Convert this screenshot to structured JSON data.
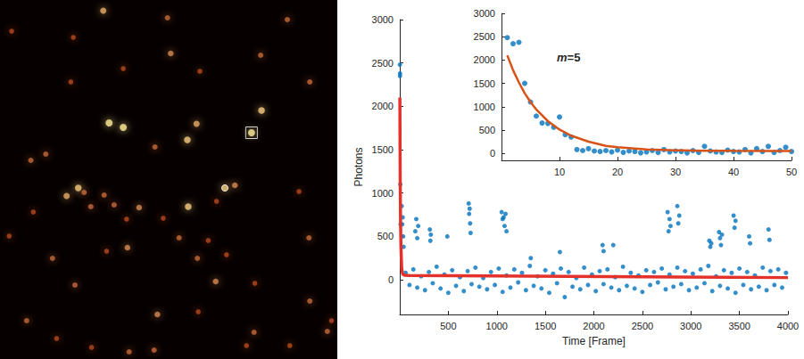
{
  "chart_data": [
    {
      "type": "image",
      "tick_labels": false,
      "xlim": [
        0,
        405
      ],
      "ylim": [
        0,
        403
      ],
      "x": [
        124,
        201,
        345,
        14,
        88,
        205,
        313,
        148,
        240,
        85,
        372,
        131,
        148,
        236,
        225,
        314,
        302,
        186,
        55,
        37,
        270,
        282,
        94,
        80,
        101,
        260,
        109,
        125,
        167,
        137,
        226,
        152,
        196,
        40,
        359,
        11,
        215,
        250,
        153,
        128,
        63,
        237,
        371,
        272,
        259,
        306,
        90,
        372,
        189,
        32,
        238,
        155,
        185,
        305,
        110,
        296,
        348,
        68,
        393,
        398
      ],
      "values": [
        12,
        20,
        22,
        35,
        42,
        60,
        62,
        77,
        80,
        92,
        92,
        138,
        143,
        139,
        157,
        124,
        149,
        165,
        173,
        180,
        211,
        208,
        211,
        220,
        216,
        226,
        232,
        219,
        233,
        230,
        232,
        246,
        245,
        238,
        215,
        265,
        267,
        270,
        278,
        282,
        290,
        290,
        267,
        286,
        316,
        318,
        320,
        338,
        353,
        360,
        350,
        395,
        393,
        373,
        390,
        388,
        388,
        380,
        372,
        360
      ],
      "intensities": [
        0.8,
        0.6,
        0.6,
        0.5,
        0.5,
        0.7,
        0.6,
        0.5,
        0.5,
        0.5,
        0.6,
        1,
        1,
        0.8,
        0.9,
        0.9,
        1,
        0.6,
        0.6,
        0.6,
        0.9,
        0.7,
        0.9,
        0.8,
        0.6,
        0.5,
        0.6,
        0.6,
        0.7,
        0.6,
        0.9,
        0.5,
        0.5,
        0.5,
        0.5,
        0.5,
        0.6,
        0.5,
        0.7,
        0.5,
        0.6,
        0.6,
        0.6,
        0.5,
        0.7,
        0.5,
        0.6,
        0.6,
        0.7,
        0.6,
        0.5,
        0.6,
        0.6,
        0.6,
        0.5,
        0.5,
        0.5,
        0.5,
        0.6,
        0.5
      ],
      "boxed": [
        302,
        149
      ],
      "ringed": [
        270,
        211
      ]
    },
    {
      "type": "scatter",
      "xlabel": "Time [Frame]",
      "ylabel": "Photons",
      "xlim": [
        0,
        4000
      ],
      "xticks": [
        500,
        1000,
        1500,
        2000,
        2500,
        3000,
        3500,
        4000
      ],
      "ylim": [
        -400,
        3000
      ],
      "yticks": [
        0,
        500,
        1000,
        1500,
        2000,
        2500,
        3000
      ],
      "series": [
        {
          "type": "scatter",
          "color": "#0072bd",
          "x": [
            1,
            2,
            3,
            5,
            8,
            20,
            25,
            30,
            35,
            40,
            160,
            170,
            180,
            190,
            310,
            315,
            320,
            490,
            710,
            715,
            720,
            725,
            730,
            1050,
            1060,
            1070,
            1080,
            1090,
            1100,
            1350,
            1650,
            2090,
            2100,
            2200,
            2760,
            2770,
            2780,
            2790,
            2860,
            2870,
            2880,
            3190,
            3200,
            3210,
            3290,
            3300,
            3310,
            3320,
            3440,
            3450,
            3460,
            3600,
            3610,
            3800,
            3810,
            60,
            100,
            140,
            180,
            220,
            260,
            300,
            340,
            380,
            420,
            460,
            500,
            540,
            580,
            620,
            660,
            700,
            740,
            780,
            820,
            860,
            900,
            940,
            980,
            1020,
            1060,
            1100,
            1140,
            1180,
            1220,
            1260,
            1300,
            1340,
            1380,
            1420,
            1460,
            1500,
            1540,
            1580,
            1620,
            1660,
            1700,
            1740,
            1780,
            1820,
            1860,
            1900,
            1940,
            1980,
            2020,
            2060,
            2100,
            2140,
            2180,
            2220,
            2260,
            2300,
            2340,
            2380,
            2420,
            2460,
            2500,
            2540,
            2580,
            2620,
            2660,
            2700,
            2740,
            2780,
            2820,
            2860,
            2900,
            2940,
            2980,
            3020,
            3060,
            3100,
            3140,
            3180,
            3220,
            3260,
            3300,
            3340,
            3380,
            3420,
            3460,
            3500,
            3540,
            3580,
            3620,
            3660,
            3700,
            3740,
            3780,
            3820,
            3860,
            3900,
            3940,
            3980
          ],
          "values": [
            2480,
            2350,
            2380,
            1100,
            640,
            850,
            640,
            720,
            500,
            380,
            560,
            700,
            480,
            620,
            580,
            450,
            520,
            500,
            880,
            760,
            820,
            650,
            540,
            780,
            700,
            720,
            620,
            760,
            560,
            250,
            320,
            400,
            330,
            400,
            780,
            560,
            700,
            620,
            850,
            650,
            740,
            450,
            380,
            420,
            550,
            480,
            400,
            520,
            740,
            600,
            680,
            500,
            420,
            580,
            460,
            80,
            -60,
            120,
            -90,
            40,
            -120,
            90,
            -40,
            150,
            -100,
            60,
            -150,
            110,
            -70,
            30,
            -130,
            100,
            -50,
            140,
            -80,
            20,
            -110,
            90,
            -60,
            130,
            -140,
            50,
            -90,
            120,
            -30,
            80,
            -120,
            160,
            -70,
            40,
            -100,
            110,
            -150,
            70,
            -40,
            130,
            -200,
            90,
            -80,
            20,
            -110,
            140,
            -60,
            60,
            -130,
            100,
            -50,
            120,
            -90,
            30,
            -120,
            150,
            -70,
            80,
            -100,
            50,
            -140,
            110,
            -60,
            90,
            -30,
            130,
            -110,
            60,
            -80,
            140,
            -50,
            100,
            -120,
            70,
            -90,
            120,
            -40,
            160,
            -130,
            40,
            -70,
            110,
            -100,
            80,
            -150,
            130,
            -60,
            90,
            -110,
            50,
            -80,
            140,
            -120,
            100,
            -60,
            120,
            -90,
            80
          ]
        },
        {
          "type": "line",
          "color": "#e4322b",
          "x": [
            1,
            3,
            5,
            8,
            12,
            20,
            30,
            50,
            100,
            4000
          ],
          "values": [
            2100,
            1520,
            1100,
            690,
            380,
            130,
            65,
            51,
            50,
            25
          ]
        }
      ]
    },
    {
      "type": "scatter",
      "annotation": "m=5",
      "xlim": [
        0,
        50
      ],
      "xticks": [
        10,
        20,
        30,
        40,
        50
      ],
      "ylim": [
        -150,
        3000
      ],
      "yticks": [
        0,
        500,
        1000,
        1500,
        2000,
        2500,
        3000
      ],
      "series": [
        {
          "type": "scatter",
          "color": "#0072bd",
          "x": [
            1,
            2,
            3,
            4,
            5,
            6,
            7,
            8,
            9,
            10,
            11,
            12,
            13,
            14,
            15,
            16,
            17,
            18,
            19,
            20,
            21,
            22,
            23,
            24,
            25,
            26,
            27,
            28,
            29,
            30,
            31,
            32,
            33,
            34,
            35,
            36,
            37,
            38,
            39,
            40,
            41,
            42,
            43,
            44,
            45,
            46,
            47,
            48,
            49,
            50
          ],
          "values": [
            2480,
            2350,
            2380,
            1500,
            1100,
            800,
            650,
            640,
            560,
            780,
            400,
            350,
            80,
            60,
            100,
            50,
            40,
            60,
            30,
            70,
            20,
            50,
            40,
            10,
            30,
            60,
            20,
            80,
            30,
            50,
            40,
            10,
            60,
            20,
            150,
            50,
            30,
            20,
            70,
            40,
            30,
            80,
            10,
            100,
            40,
            150,
            20,
            60,
            130,
            40
          ]
        },
        {
          "type": "line",
          "color": "#d95319",
          "x": [
            1,
            2,
            3,
            4,
            5,
            6,
            8,
            10,
            12,
            15,
            18,
            20,
            25,
            30,
            35,
            40,
            45,
            50
          ],
          "values": [
            2100,
            1780,
            1520,
            1290,
            1100,
            940,
            690,
            510,
            380,
            250,
            160,
            130,
            85,
            65,
            57,
            53,
            52,
            51
          ]
        }
      ]
    }
  ]
}
